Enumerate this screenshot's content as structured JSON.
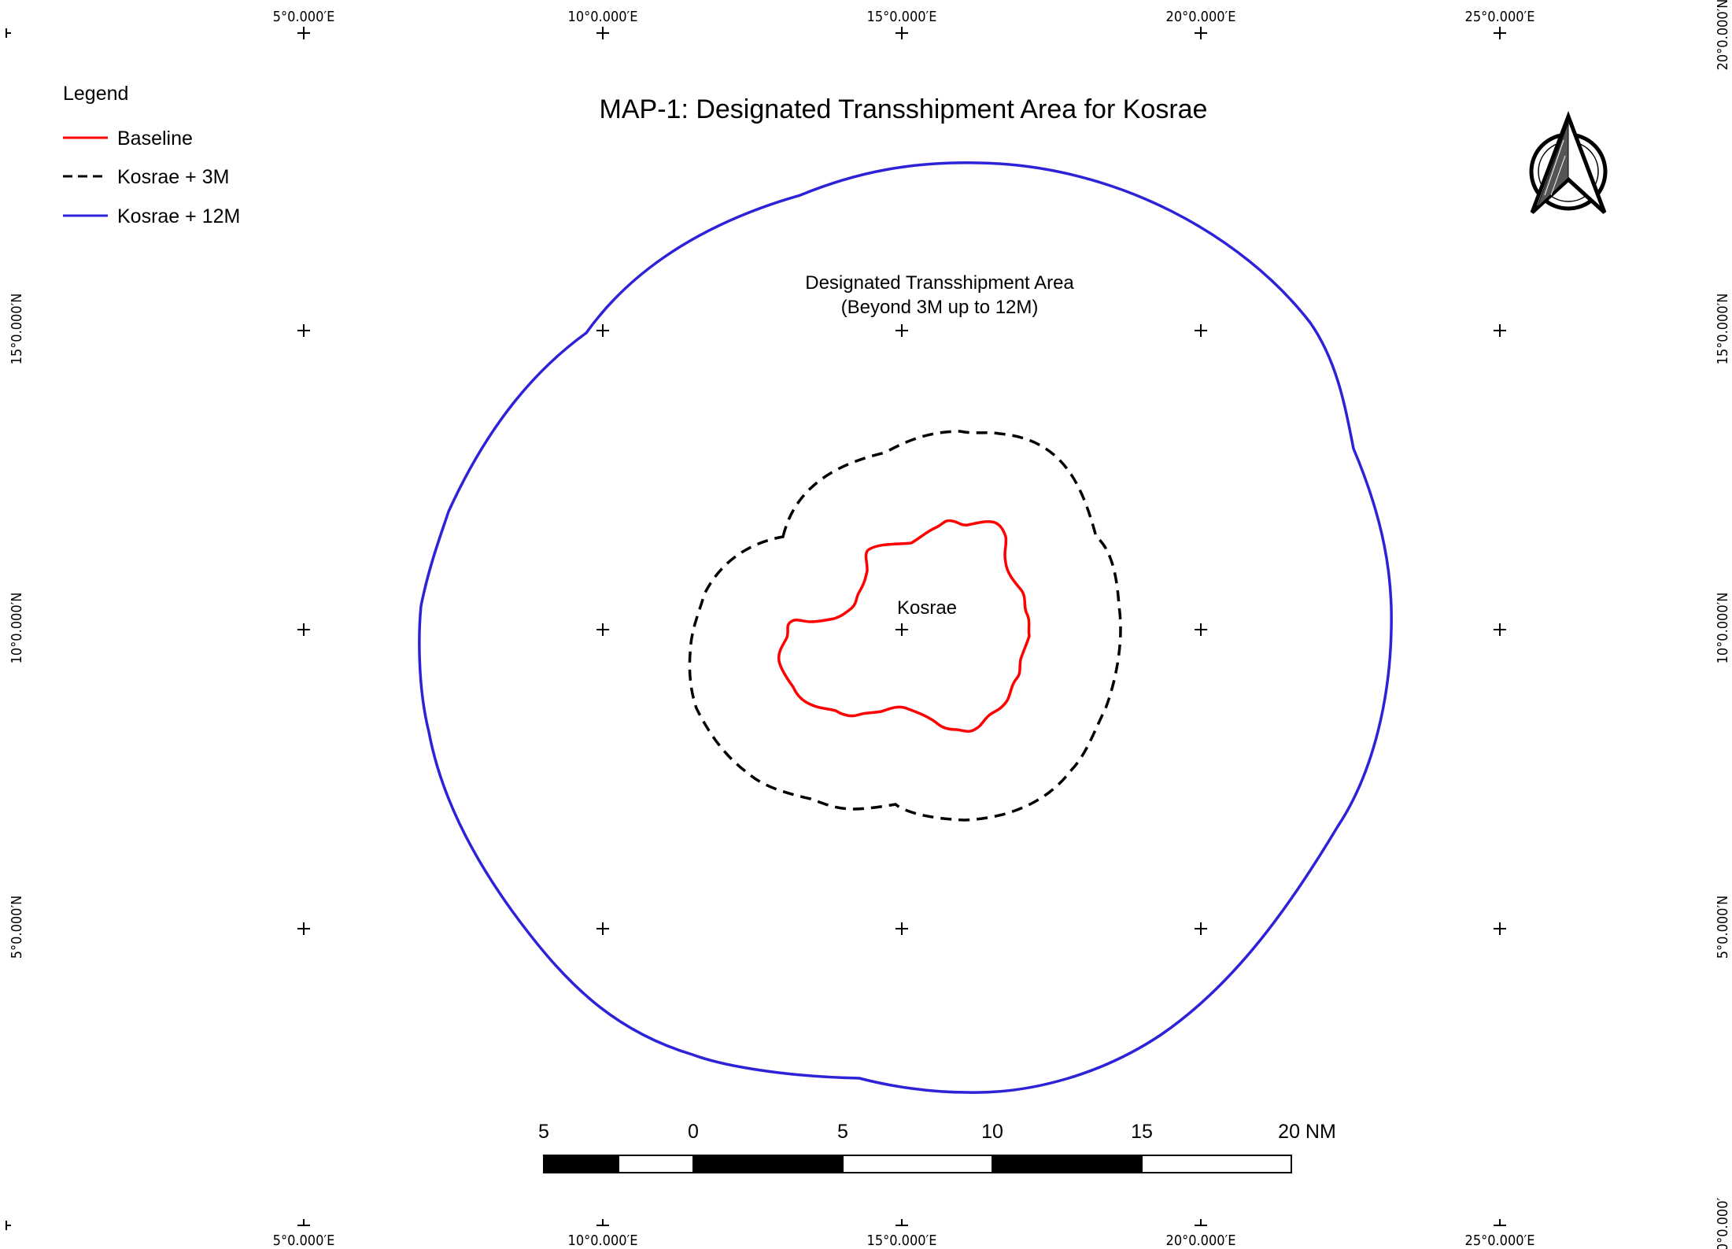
{
  "map": {
    "title": "MAP-1: Designated Transshipment Area for Kosrae",
    "island_label": "Kosrae",
    "area_label_line1": "Designated Transshipment Area",
    "area_label_line2": "(Beyond 3M up to 12M)"
  },
  "legend": {
    "heading": "Legend",
    "items": [
      {
        "label": "Baseline",
        "color": "#ff0000",
        "style": "solid"
      },
      {
        "label": "Kosrae + 3M",
        "color": "#000000",
        "style": "dashed"
      },
      {
        "label": "Kosrae + 12M",
        "color": "#2e22d8",
        "style": "solid"
      }
    ]
  },
  "graticule": {
    "top_labels": [
      "5°0.000′E",
      "10°0.000′E",
      "15°0.000′E",
      "20°0.000′E",
      "25°0.000′E"
    ],
    "bottom_labels": [
      "5°0.000′E",
      "10°0.000′E",
      "15°0.000′E",
      "20°0.000′E",
      "25°0.000′E"
    ],
    "left_labels": [
      "15°0.000′N",
      "10°0.000′N",
      "5°0.000′N"
    ],
    "right_labels": [
      "20°0.000′N",
      "15°0.000′N",
      "10°0.000′N",
      "5°0.000′N",
      "0°0.000′"
    ]
  },
  "scale_bar": {
    "labels": [
      "5",
      "0",
      "5",
      "10",
      "15",
      "20 NM"
    ]
  },
  "north_arrow": {
    "icon": "north-arrow-icon"
  }
}
